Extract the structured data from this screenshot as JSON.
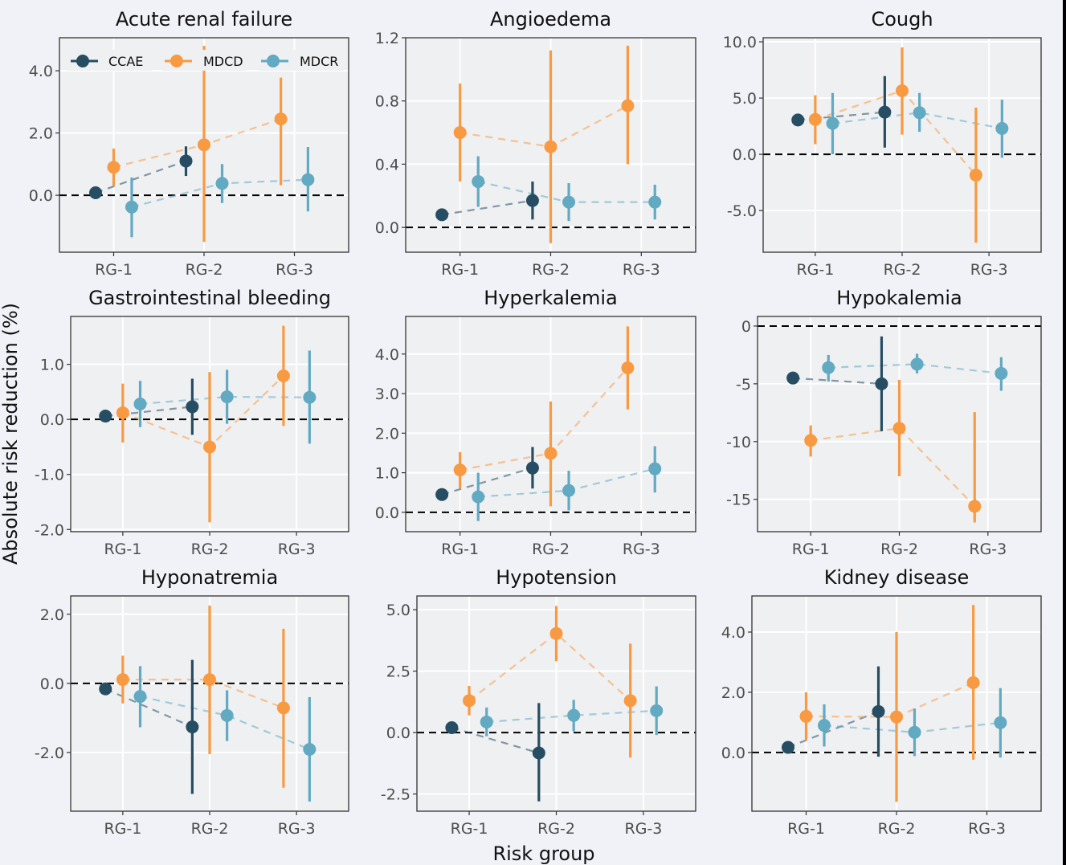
{
  "chart_data": {
    "type": "scatter",
    "subtype": "dot-and-errorbar faceted plot with dashed connecting lines",
    "xlabel": "Risk group",
    "ylabel": "Absolute risk reduction (%)",
    "categories": [
      "RG-1",
      "RG-2",
      "RG-3"
    ],
    "legend": {
      "placement": "inside top-left of first panel",
      "entries": [
        {
          "name": "CCAE",
          "color": "#264d62"
        },
        {
          "name": "MDCD",
          "color": "#f89a42"
        },
        {
          "name": "MDCR",
          "color": "#62a9c2"
        }
      ]
    },
    "reference_line": {
      "y": 0,
      "style": "dashed",
      "color": "#000000"
    },
    "grid": true,
    "panels": [
      {
        "title": "Acute renal failure",
        "ylim": [
          -1.83,
          5.06
        ],
        "yticks": [
          0,
          2,
          4
        ],
        "ytick_labels": [
          "0.0",
          "2.0",
          "4.0"
        ],
        "series": [
          {
            "name": "CCAE",
            "points": [
              {
                "x": "RG-1",
                "y": 0.08,
                "lo": 0.02,
                "hi": 0.14
              },
              {
                "x": "RG-2",
                "y": 1.1,
                "lo": 0.62,
                "hi": 1.57
              }
            ]
          },
          {
            "name": "MDCD",
            "points": [
              {
                "x": "RG-1",
                "y": 0.9,
                "lo": 0.3,
                "hi": 1.5
              },
              {
                "x": "RG-2",
                "y": 1.62,
                "lo": -1.5,
                "hi": 4.8
              },
              {
                "x": "RG-3",
                "y": 2.45,
                "lo": 0.32,
                "hi": 3.78
              }
            ]
          },
          {
            "name": "MDCR",
            "points": [
              {
                "x": "RG-1",
                "y": -0.38,
                "lo": -1.35,
                "hi": 0.57
              },
              {
                "x": "RG-2",
                "y": 0.38,
                "lo": -0.25,
                "hi": 1.0
              },
              {
                "x": "RG-3",
                "y": 0.5,
                "lo": -0.52,
                "hi": 1.55
              }
            ]
          }
        ]
      },
      {
        "title": "Angioedema",
        "ylim": [
          -0.157,
          1.2
        ],
        "yticks": [
          0,
          0.4,
          0.8,
          1.2
        ],
        "ytick_labels": [
          "0.0",
          "0.4",
          "0.8",
          "1.2"
        ],
        "series": [
          {
            "name": "CCAE",
            "points": [
              {
                "x": "RG-1",
                "y": 0.08,
                "lo": 0.07,
                "hi": 0.09
              },
              {
                "x": "RG-2",
                "y": 0.17,
                "lo": 0.05,
                "hi": 0.29
              }
            ]
          },
          {
            "name": "MDCD",
            "points": [
              {
                "x": "RG-1",
                "y": 0.6,
                "lo": 0.29,
                "hi": 0.91
              },
              {
                "x": "RG-2",
                "y": 0.51,
                "lo": -0.1,
                "hi": 1.12
              },
              {
                "x": "RG-3",
                "y": 0.77,
                "lo": 0.4,
                "hi": 1.15
              }
            ]
          },
          {
            "name": "MDCR",
            "points": [
              {
                "x": "RG-1",
                "y": 0.29,
                "lo": 0.13,
                "hi": 0.45
              },
              {
                "x": "RG-2",
                "y": 0.16,
                "lo": 0.04,
                "hi": 0.28
              },
              {
                "x": "RG-3",
                "y": 0.16,
                "lo": 0.05,
                "hi": 0.27
              }
            ]
          }
        ]
      },
      {
        "title": "Cough",
        "ylim": [
          -8.7,
          10.36
        ],
        "yticks": [
          -5,
          0,
          5,
          10
        ],
        "ytick_labels": [
          "-5.0",
          "0.0",
          "5.0",
          "10.0"
        ],
        "series": [
          {
            "name": "CCAE",
            "points": [
              {
                "x": "RG-1",
                "y": 3.05,
                "lo": 2.95,
                "hi": 3.15
              },
              {
                "x": "RG-2",
                "y": 3.75,
                "lo": 0.6,
                "hi": 6.95
              }
            ]
          },
          {
            "name": "MDCD",
            "points": [
              {
                "x": "RG-1",
                "y": 3.1,
                "lo": 0.9,
                "hi": 5.25
              },
              {
                "x": "RG-2",
                "y": 5.65,
                "lo": 1.75,
                "hi": 9.5
              },
              {
                "x": "RG-3",
                "y": -1.85,
                "lo": -7.85,
                "hi": 4.15
              }
            ]
          },
          {
            "name": "MDCR",
            "points": [
              {
                "x": "RG-1",
                "y": 2.75,
                "lo": 0.0,
                "hi": 5.45
              },
              {
                "x": "RG-2",
                "y": 3.7,
                "lo": 2.0,
                "hi": 5.45
              },
              {
                "x": "RG-3",
                "y": 2.3,
                "lo": -0.3,
                "hi": 4.85
              }
            ]
          }
        ]
      },
      {
        "title": "Gastrointestinal bleeding",
        "ylim": [
          -2.04,
          1.87
        ],
        "yticks": [
          -2,
          -1,
          0,
          1
        ],
        "ytick_labels": [
          "-2.0",
          "-1.0",
          "0.0",
          "1.0"
        ],
        "series": [
          {
            "name": "CCAE",
            "points": [
              {
                "x": "RG-1",
                "y": 0.06,
                "lo": 0.04,
                "hi": 0.08
              },
              {
                "x": "RG-2",
                "y": 0.23,
                "lo": -0.28,
                "hi": 0.74
              }
            ]
          },
          {
            "name": "MDCD",
            "points": [
              {
                "x": "RG-1",
                "y": 0.12,
                "lo": -0.42,
                "hi": 0.65
              },
              {
                "x": "RG-2",
                "y": -0.5,
                "lo": -1.87,
                "hi": 0.86
              },
              {
                "x": "RG-3",
                "y": 0.79,
                "lo": -0.12,
                "hi": 1.7
              }
            ]
          },
          {
            "name": "MDCR",
            "points": [
              {
                "x": "RG-1",
                "y": 0.28,
                "lo": -0.14,
                "hi": 0.7
              },
              {
                "x": "RG-2",
                "y": 0.41,
                "lo": -0.08,
                "hi": 0.9
              },
              {
                "x": "RG-3",
                "y": 0.4,
                "lo": -0.44,
                "hi": 1.25
              }
            ]
          }
        ]
      },
      {
        "title": "Hyperkalemia",
        "ylim": [
          -0.49,
          4.95
        ],
        "yticks": [
          0,
          1,
          2,
          3,
          4
        ],
        "ytick_labels": [
          "0.0",
          "1.0",
          "2.0",
          "3.0",
          "4.0"
        ],
        "series": [
          {
            "name": "CCAE",
            "points": [
              {
                "x": "RG-1",
                "y": 0.45,
                "lo": 0.42,
                "hi": 0.48
              },
              {
                "x": "RG-2",
                "y": 1.12,
                "lo": 0.6,
                "hi": 1.65
              }
            ]
          },
          {
            "name": "MDCD",
            "points": [
              {
                "x": "RG-1",
                "y": 1.07,
                "lo": 0.6,
                "hi": 1.52
              },
              {
                "x": "RG-2",
                "y": 1.49,
                "lo": 0.15,
                "hi": 2.8
              },
              {
                "x": "RG-3",
                "y": 3.65,
                "lo": 2.6,
                "hi": 4.7
              }
            ]
          },
          {
            "name": "MDCR",
            "points": [
              {
                "x": "RG-1",
                "y": 0.39,
                "lo": -0.22,
                "hi": 1.0
              },
              {
                "x": "RG-2",
                "y": 0.55,
                "lo": 0.05,
                "hi": 1.05
              },
              {
                "x": "RG-3",
                "y": 1.1,
                "lo": 0.5,
                "hi": 1.67
              }
            ]
          }
        ]
      },
      {
        "title": "Hypokalemia",
        "ylim": [
          -17.8,
          0.83
        ],
        "yticks": [
          -15,
          -10,
          -5,
          0
        ],
        "ytick_labels": [
          "-15",
          "-10",
          "-5",
          "0"
        ],
        "series": [
          {
            "name": "CCAE",
            "points": [
              {
                "x": "RG-1",
                "y": -4.5,
                "lo": -4.6,
                "hi": -4.4
              },
              {
                "x": "RG-2",
                "y": -5.0,
                "lo": -9.1,
                "hi": -0.9
              }
            ]
          },
          {
            "name": "MDCD",
            "points": [
              {
                "x": "RG-1",
                "y": -9.9,
                "lo": -11.3,
                "hi": -8.6
              },
              {
                "x": "RG-2",
                "y": -8.85,
                "lo": -13.0,
                "hi": -4.65
              },
              {
                "x": "RG-3",
                "y": -15.6,
                "lo": -17.0,
                "hi": -7.45
              }
            ]
          },
          {
            "name": "MDCR",
            "points": [
              {
                "x": "RG-1",
                "y": -3.6,
                "lo": -4.8,
                "hi": -2.5
              },
              {
                "x": "RG-2",
                "y": -3.3,
                "lo": -4.1,
                "hi": -2.4
              },
              {
                "x": "RG-3",
                "y": -4.1,
                "lo": -5.6,
                "hi": -2.7
              }
            ]
          }
        ]
      },
      {
        "title": "Hyponatremia",
        "ylim": [
          -3.7,
          2.53
        ],
        "yticks": [
          -2,
          0,
          2
        ],
        "ytick_labels": [
          "-2.0",
          "0.0",
          "2.0"
        ],
        "series": [
          {
            "name": "CCAE",
            "points": [
              {
                "x": "RG-1",
                "y": -0.16,
                "lo": -0.2,
                "hi": -0.12
              },
              {
                "x": "RG-2",
                "y": -1.26,
                "lo": -3.2,
                "hi": 0.68
              }
            ]
          },
          {
            "name": "MDCD",
            "points": [
              {
                "x": "RG-1",
                "y": 0.11,
                "lo": -0.58,
                "hi": 0.8
              },
              {
                "x": "RG-2",
                "y": 0.11,
                "lo": -2.05,
                "hi": 2.25
              },
              {
                "x": "RG-3",
                "y": -0.71,
                "lo": -3.02,
                "hi": 1.58
              }
            ]
          },
          {
            "name": "MDCR",
            "points": [
              {
                "x": "RG-1",
                "y": -0.38,
                "lo": -1.27,
                "hi": 0.5
              },
              {
                "x": "RG-2",
                "y": -0.93,
                "lo": -1.67,
                "hi": -0.2
              },
              {
                "x": "RG-3",
                "y": -1.91,
                "lo": -3.42,
                "hi": -0.4
              }
            ]
          }
        ]
      },
      {
        "title": "Hypotension",
        "ylim": [
          -3.2,
          5.56
        ],
        "yticks": [
          -2.5,
          0,
          2.5,
          5
        ],
        "ytick_labels": [
          "-2.5",
          "0.0",
          "2.5",
          "5.0"
        ],
        "series": [
          {
            "name": "CCAE",
            "points": [
              {
                "x": "RG-1",
                "y": 0.2,
                "lo": 0.15,
                "hi": 0.25
              },
              {
                "x": "RG-2",
                "y": -0.83,
                "lo": -2.8,
                "hi": 1.2
              }
            ]
          },
          {
            "name": "MDCD",
            "points": [
              {
                "x": "RG-1",
                "y": 1.3,
                "lo": 0.7,
                "hi": 1.9
              },
              {
                "x": "RG-2",
                "y": 4.03,
                "lo": 2.9,
                "hi": 5.15
              },
              {
                "x": "RG-3",
                "y": 1.3,
                "lo": -1.02,
                "hi": 3.62
              }
            ]
          },
          {
            "name": "MDCR",
            "points": [
              {
                "x": "RG-1",
                "y": 0.43,
                "lo": -0.15,
                "hi": 1.02
              },
              {
                "x": "RG-2",
                "y": 0.7,
                "lo": 0.05,
                "hi": 1.33
              },
              {
                "x": "RG-3",
                "y": 0.89,
                "lo": -0.1,
                "hi": 1.88
              }
            ]
          }
        ]
      },
      {
        "title": "Kidney disease",
        "ylim": [
          -1.95,
          5.2
        ],
        "yticks": [
          0,
          2,
          4
        ],
        "ytick_labels": [
          "0.0",
          "2.0",
          "4.0"
        ],
        "series": [
          {
            "name": "CCAE",
            "points": [
              {
                "x": "RG-1",
                "y": 0.17,
                "lo": 0.12,
                "hi": 0.22
              },
              {
                "x": "RG-2",
                "y": 1.36,
                "lo": -0.14,
                "hi": 2.86
              }
            ]
          },
          {
            "name": "MDCD",
            "points": [
              {
                "x": "RG-1",
                "y": 1.2,
                "lo": 0.4,
                "hi": 2.0
              },
              {
                "x": "RG-2",
                "y": 1.18,
                "lo": -1.64,
                "hi": 4.0
              },
              {
                "x": "RG-3",
                "y": 2.32,
                "lo": -0.24,
                "hi": 4.9
              }
            ]
          },
          {
            "name": "MDCR",
            "points": [
              {
                "x": "RG-1",
                "y": 0.9,
                "lo": 0.2,
                "hi": 1.6
              },
              {
                "x": "RG-2",
                "y": 0.67,
                "lo": -0.12,
                "hi": 1.46
              },
              {
                "x": "RG-3",
                "y": 0.99,
                "lo": -0.17,
                "hi": 2.14
              }
            ]
          }
        ]
      }
    ]
  }
}
